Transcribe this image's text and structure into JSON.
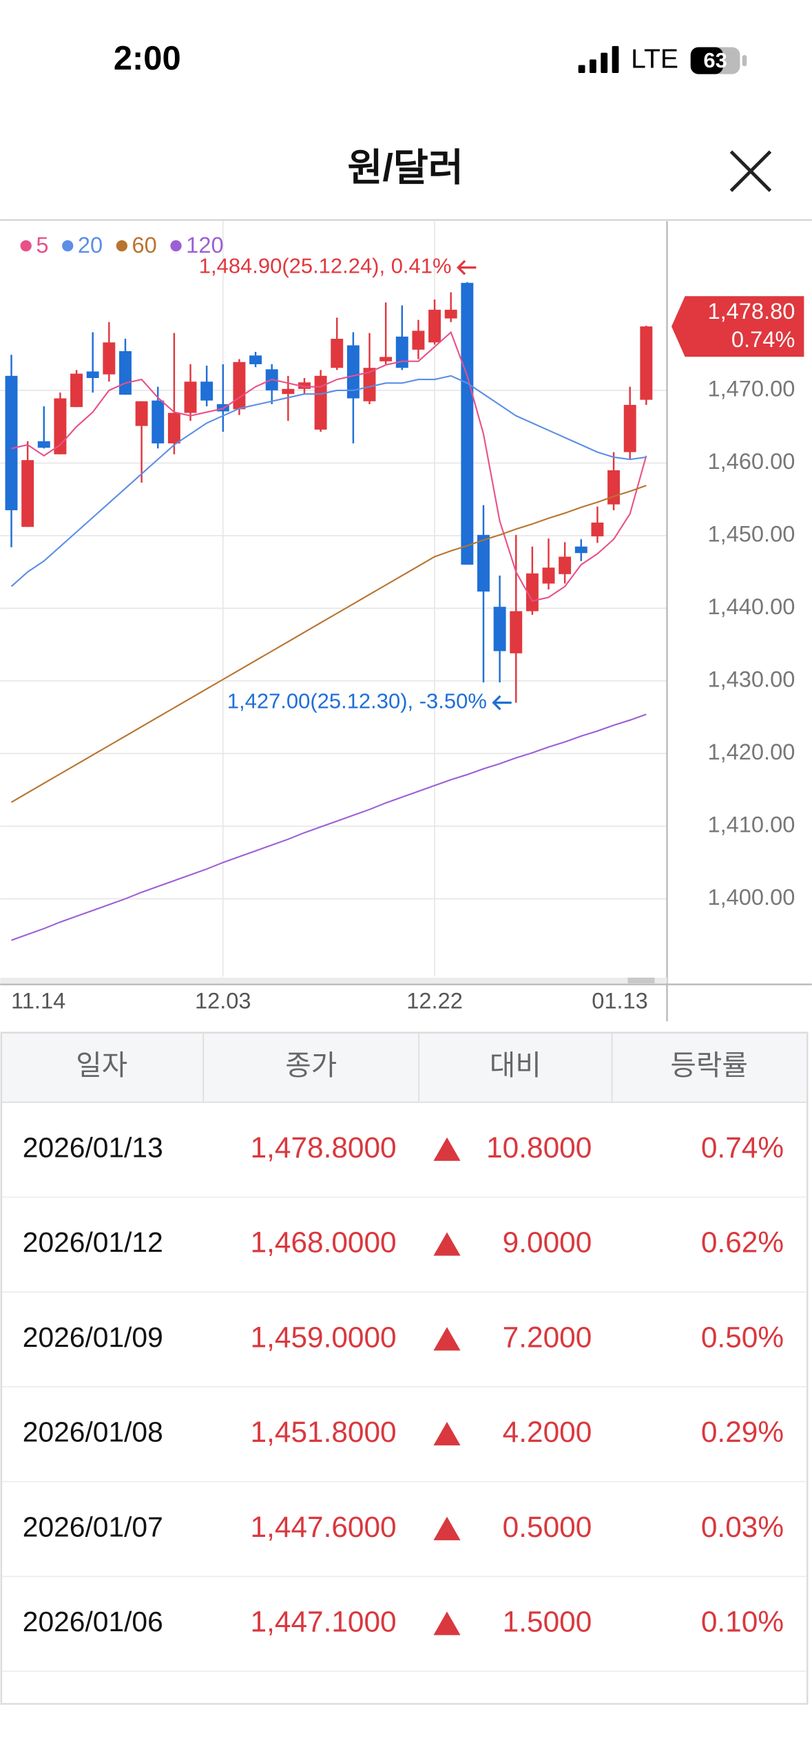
{
  "status_bar": {
    "time": "2:00",
    "network": "LTE",
    "battery": "63"
  },
  "header": {
    "title": "원/달러"
  },
  "chart_data": {
    "type": "candlestick",
    "categories": [
      "11.14",
      null,
      null,
      null,
      null,
      null,
      null,
      null,
      null,
      null,
      null,
      null,
      null,
      "12.03",
      null,
      null,
      null,
      null,
      null,
      null,
      null,
      null,
      null,
      null,
      null,
      null,
      "12.22",
      null,
      null,
      null,
      null,
      null,
      null,
      null,
      null,
      null,
      null,
      null,
      null,
      "01.13"
    ],
    "open": [
      1472.0,
      1451.2,
      1463.0,
      1461.2,
      1467.7,
      1472.6,
      1472.2,
      1475.4,
      1465.1,
      1468.6,
      1462.7,
      1466.9,
      1471.2,
      1468.1,
      1467.4,
      1474.8,
      1472.9,
      1469.5,
      1470.2,
      1464.6,
      1473.1,
      1476.2,
      1468.5,
      1474.0,
      1477.4,
      1475.6,
      1476.6,
      1479.9,
      1484.8,
      1450.1,
      1440.2,
      1433.8,
      1439.6,
      1443.4,
      1444.7,
      1448.5,
      1449.9,
      1454.3,
      1461.5,
      1468.7
    ],
    "high": [
      1474.9,
      1463.0,
      1467.8,
      1469.7,
      1472.8,
      1478.0,
      1479.4,
      1477.1,
      1468.5,
      1470.5,
      1477.9,
      1473.6,
      1473.4,
      1473.6,
      1474.3,
      1475.3,
      1473.6,
      1472.0,
      1471.7,
      1472.8,
      1480.0,
      1478.0,
      1477.9,
      1482.1,
      1481.7,
      1479.7,
      1482.5,
      1483.5,
      1484.9,
      1454.2,
      1444.5,
      1450.1,
      1448.5,
      1449.6,
      1449.1,
      1449.5,
      1454.0,
      1461.5,
      1470.5,
      1478.9
    ],
    "low": [
      1448.4,
      1451.2,
      1462.0,
      1461.2,
      1467.7,
      1469.7,
      1471.2,
      1469.4,
      1457.3,
      1462.0,
      1461.2,
      1465.8,
      1467.8,
      1464.3,
      1466.6,
      1473.2,
      1468.1,
      1465.8,
      1469.4,
      1464.3,
      1472.8,
      1462.7,
      1468.1,
      1473.6,
      1472.8,
      1474.3,
      1476.3,
      1479.4,
      1446.0,
      1429.8,
      1429.8,
      1427.0,
      1439.1,
      1442.6,
      1443.4,
      1446.5,
      1449.0,
      1453.5,
      1460.5,
      1468.0
    ],
    "close": [
      1453.5,
      1460.4,
      1462.1,
      1468.9,
      1472.3,
      1471.7,
      1476.6,
      1469.4,
      1468.5,
      1462.7,
      1466.9,
      1471.2,
      1468.6,
      1467.1,
      1473.9,
      1473.6,
      1470.0,
      1470.2,
      1471.1,
      1472.0,
      1477.1,
      1468.9,
      1473.1,
      1474.6,
      1473.1,
      1478.2,
      1481.1,
      1481.1,
      1446.0,
      1442.3,
      1434.1,
      1439.6,
      1444.8,
      1445.6,
      1447.1,
      1447.6,
      1451.8,
      1459.0,
      1468.0,
      1478.8
    ],
    "up_color": "#e0383e",
    "down_color": "#1f6fd6",
    "series": [
      {
        "name": "5",
        "color": "#e8508a",
        "values": [
          1462,
          1462.5,
          1461,
          1462.5,
          1465,
          1467,
          1470,
          1471,
          1471.5,
          1469,
          1467,
          1466.5,
          1467,
          1467.5,
          1469,
          1470.5,
          1471.5,
          1471,
          1470.5,
          1470.5,
          1471.5,
          1472,
          1472.5,
          1473.5,
          1474,
          1474,
          1476,
          1478,
          1472,
          1464,
          1452,
          1445,
          1441,
          1441.5,
          1443,
          1446,
          1447.5,
          1449.5,
          1453,
          1461
        ]
      },
      {
        "name": "20",
        "color": "#5b8ee6",
        "values": [
          1443,
          1445,
          1446.5,
          1448.5,
          1450.5,
          1452.5,
          1454.5,
          1456.5,
          1458.5,
          1460.5,
          1462.5,
          1464,
          1465.5,
          1466.5,
          1467.5,
          1468,
          1468.5,
          1469,
          1469.5,
          1469.5,
          1470,
          1470,
          1470.5,
          1471,
          1471,
          1471.5,
          1471.5,
          1472,
          1471,
          1469.5,
          1468,
          1466.5,
          1465.5,
          1464.5,
          1463.5,
          1462.5,
          1461.5,
          1460.8,
          1460.5,
          1460.8
        ]
      },
      {
        "name": "60",
        "color": "#b8742f",
        "values": [
          1413.3,
          1414.6,
          1415.9,
          1417.2,
          1418.5,
          1419.8,
          1421.1,
          1422.4,
          1423.7,
          1425.0,
          1426.3,
          1427.6,
          1428.9,
          1430.2,
          1431.5,
          1432.8,
          1434.1,
          1435.4,
          1436.7,
          1438.0,
          1439.3,
          1440.6,
          1441.9,
          1443.2,
          1444.5,
          1445.8,
          1447.1,
          1447.9,
          1448.6,
          1449.4,
          1450.1,
          1450.9,
          1451.6,
          1452.4,
          1453.1,
          1453.9,
          1454.6,
          1455.4,
          1456.1,
          1456.9
        ]
      },
      {
        "name": "120",
        "color": "#9c5fd6",
        "values": [
          1394.3,
          1395.1,
          1395.9,
          1396.8,
          1397.6,
          1398.4,
          1399.2,
          1400.0,
          1400.9,
          1401.7,
          1402.5,
          1403.3,
          1404.1,
          1405.0,
          1405.8,
          1406.6,
          1407.4,
          1408.2,
          1409.1,
          1409.9,
          1410.7,
          1411.5,
          1412.3,
          1413.2,
          1414.0,
          1414.8,
          1415.6,
          1416.4,
          1417.1,
          1417.9,
          1418.6,
          1419.4,
          1420.1,
          1420.9,
          1421.6,
          1422.4,
          1423.1,
          1423.9,
          1424.6,
          1425.4
        ]
      }
    ],
    "ylim": [
      1389.3,
      1493.3
    ],
    "yticks": [
      {
        "value": 1400,
        "label": "1,400.00"
      },
      {
        "value": 1410,
        "label": "1,410.00"
      },
      {
        "value": 1420,
        "label": "1,420.00"
      },
      {
        "value": 1430,
        "label": "1,430.00"
      },
      {
        "value": 1440,
        "label": "1,440.00"
      },
      {
        "value": 1450,
        "label": "1,450.00"
      },
      {
        "value": 1460,
        "label": "1,460.00"
      },
      {
        "value": 1470,
        "label": "1,470.00"
      }
    ],
    "grid": true,
    "annotations": {
      "high": "1,484.90(25.12.24), 0.41%",
      "low": "1,427.00(25.12.30), -3.50%"
    },
    "last_price": {
      "price": "1,478.80",
      "change": "0.74%"
    }
  },
  "table": {
    "headers": [
      "일자",
      "종가",
      "대비",
      "등락률"
    ],
    "rows": [
      [
        "2026/01/13",
        "1,478.8000",
        "10.8000",
        "0.74%"
      ],
      [
        "2026/01/12",
        "1,468.0000",
        "9.0000",
        "0.62%"
      ],
      [
        "2026/01/09",
        "1,459.0000",
        "7.2000",
        "0.50%"
      ],
      [
        "2026/01/08",
        "1,451.8000",
        "4.2000",
        "0.29%"
      ],
      [
        "2026/01/07",
        "1,447.6000",
        "0.5000",
        "0.03%"
      ],
      [
        "2026/01/06",
        "1,447.1000",
        "1.5000",
        "0.10%"
      ]
    ]
  }
}
